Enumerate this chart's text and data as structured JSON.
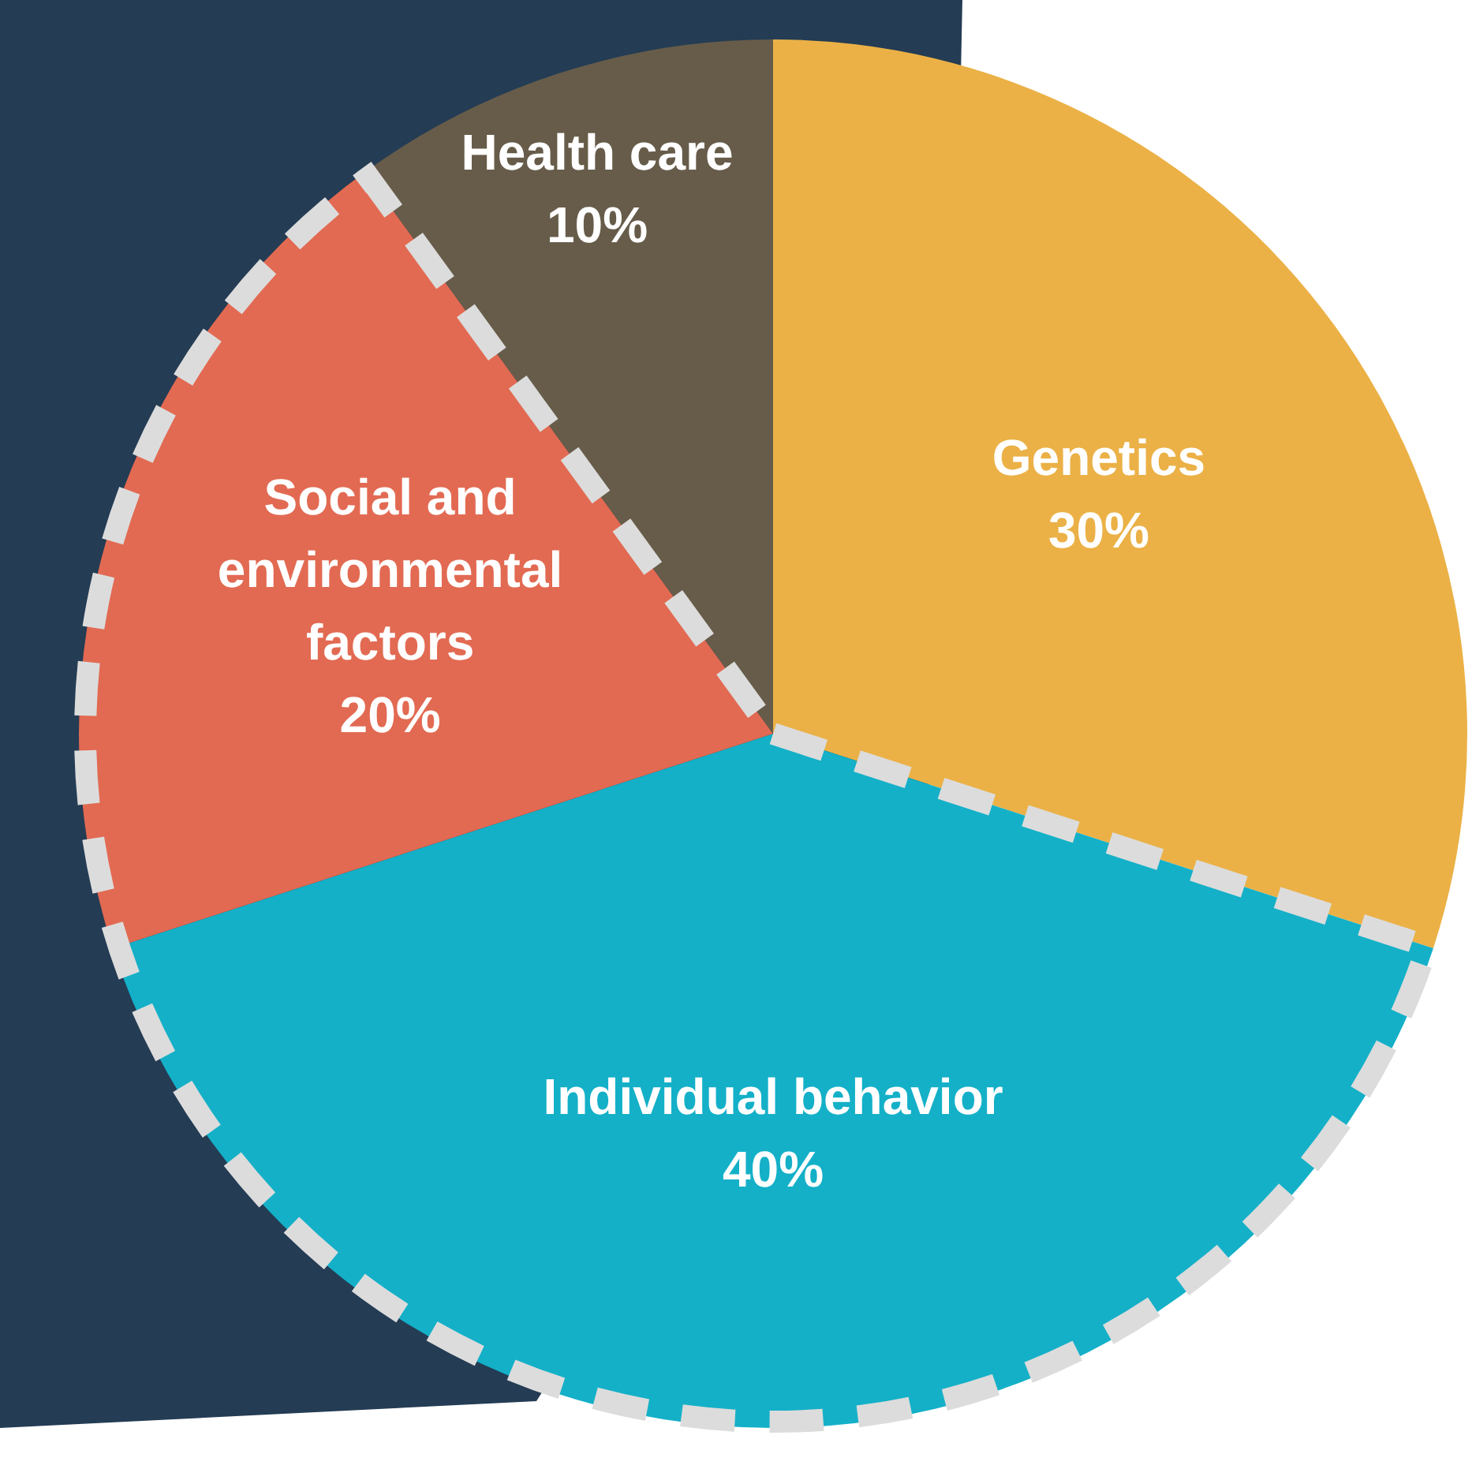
{
  "chart_data": {
    "type": "pie",
    "categories": [
      "Genetics",
      "Individual behavior",
      "Social and environmental factors",
      "Health care"
    ],
    "values": [
      30,
      40,
      20,
      10
    ],
    "colors": [
      "#ebb146",
      "#14b0c8",
      "#e26a52",
      "#675c4a"
    ],
    "value_labels": [
      "30%",
      "40%",
      "20%",
      "10%"
    ],
    "legend": false
  }
}
